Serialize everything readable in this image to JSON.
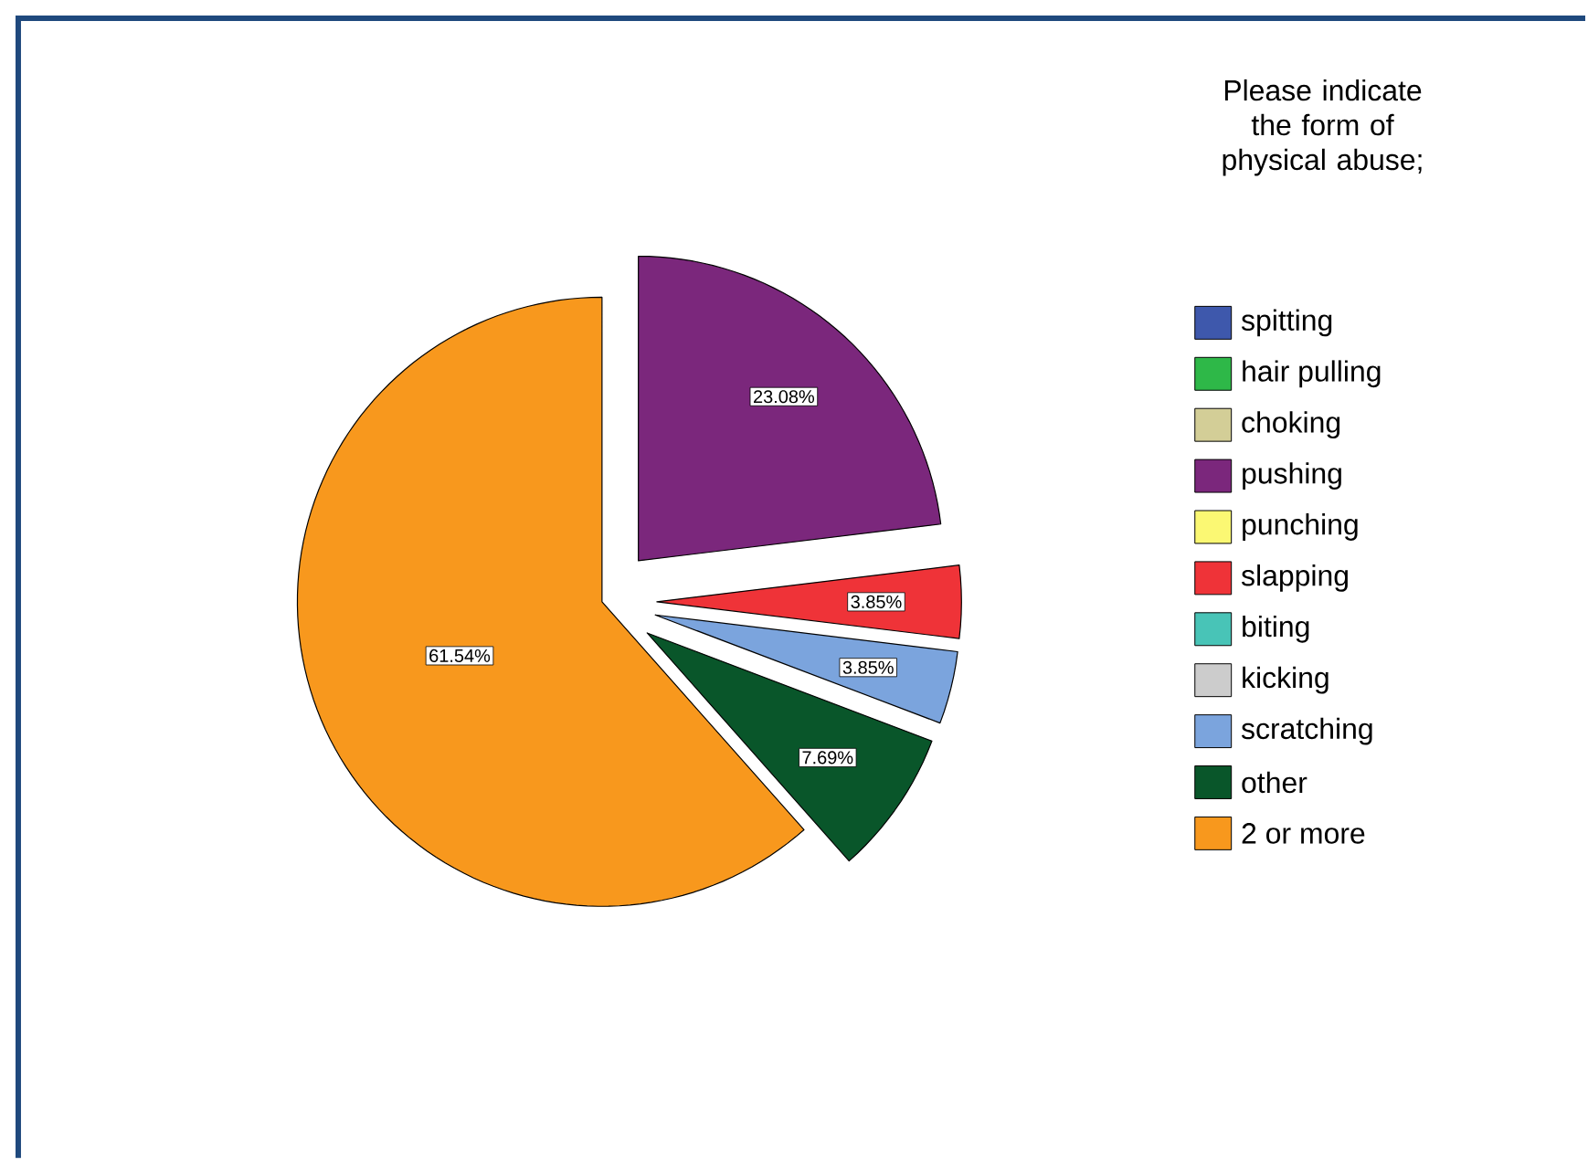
{
  "chart_data": {
    "type": "pie",
    "categories": [
      "spitting",
      "hair pulling",
      "choking",
      "pushing",
      "punching",
      "slapping",
      "biting",
      "kicking",
      "scratching",
      "other",
      "2 or more"
    ],
    "values": [
      0,
      0,
      0,
      23.08,
      0,
      3.85,
      0,
      0,
      3.85,
      7.69,
      61.54
    ],
    "colors": [
      "#3e58ac",
      "#2eb848",
      "#d3ce97",
      "#7b277c",
      "#fbf873",
      "#ef3338",
      "#48c4b7",
      "#cccccc",
      "#7ba4dd",
      "#09562a",
      "#f8981d"
    ],
    "value_labels": [
      null,
      null,
      null,
      "23.08%",
      null,
      "3.85%",
      null,
      null,
      "3.85%",
      "7.69%",
      "61.54%"
    ],
    "legend_title": "Please indicate the form of physical abuse;",
    "legend": "right"
  }
}
